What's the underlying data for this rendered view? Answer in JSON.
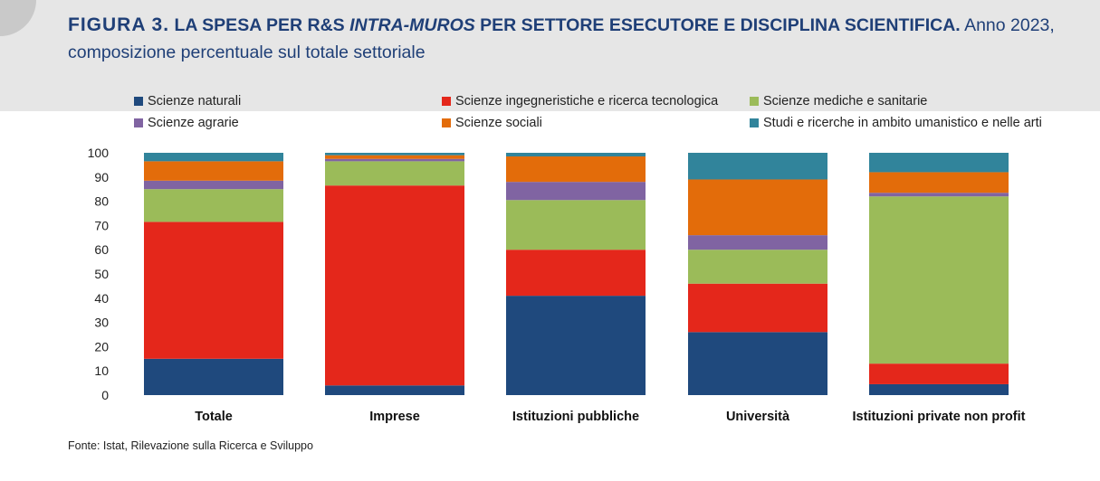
{
  "figure": {
    "label": "FIGURA 3.",
    "title_main": "LA SPESA PER R&S",
    "title_italic": "INTRA-MUROS",
    "title_main2": "PER SETTORE ESECUTORE E DISCIPLINA SCIENTIFICA.",
    "title_rest": "Anno 2023, composizione percentuale sul totale settoriale"
  },
  "source": "Fonte: Istat, Rilevazione sulla Ricerca e Sviluppo",
  "chart_data": {
    "type": "bar",
    "stacked": true,
    "categories": [
      "Totale",
      "Imprese",
      "Istituzioni pubbliche",
      "Università",
      "Istituzioni private non profit"
    ],
    "series": [
      {
        "name": "Scienze naturali",
        "color": "#1f497d",
        "values": [
          15,
          4,
          41,
          26,
          4.5
        ]
      },
      {
        "name": "Scienze ingegneristiche e ricerca tecnologica",
        "color": "#e4271b",
        "values": [
          56.5,
          82.5,
          19,
          20,
          8.5
        ]
      },
      {
        "name": "Scienze mediche e sanitarie",
        "color": "#9bbb59",
        "values": [
          13.5,
          10,
          20.5,
          14,
          69
        ]
      },
      {
        "name": "Scienze agrarie",
        "color": "#8064a2",
        "values": [
          3.5,
          1,
          7.5,
          6,
          1.5
        ]
      },
      {
        "name": "Scienze sociali",
        "color": "#e36c0a",
        "values": [
          8,
          1.5,
          10.5,
          23,
          8.5
        ]
      },
      {
        "name": "Studi e ricerche in ambito umanistico e nelle arti",
        "color": "#31849b",
        "values": [
          3.5,
          1,
          1.5,
          11,
          8
        ]
      }
    ],
    "ylim": [
      0,
      100
    ],
    "yticks": [
      0,
      10,
      20,
      30,
      40,
      50,
      60,
      70,
      80,
      90,
      100
    ],
    "grid": false,
    "legend_position": "top"
  }
}
